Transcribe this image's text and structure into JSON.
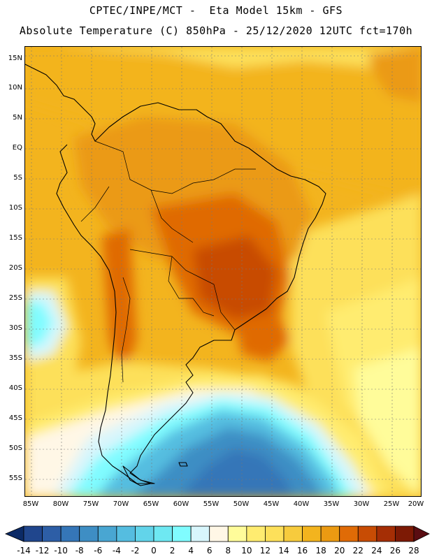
{
  "header": {
    "title_line1": "CPTEC/INPE/MCT -  Eta Model 15km - GFS",
    "title_line2": "Absolute Temperature (C) 850hPa - 25/12/2020 12UTC fct=170h"
  },
  "map": {
    "lat_labels": [
      "15N",
      "10N",
      "5N",
      "EQ",
      "5S",
      "10S",
      "15S",
      "20S",
      "25S",
      "30S",
      "35S",
      "40S",
      "45S",
      "50S",
      "55S"
    ],
    "lon_labels": [
      "85W",
      "80W",
      "75W",
      "70W",
      "65W",
      "60W",
      "55W",
      "50W",
      "45W",
      "40W",
      "35W",
      "30W",
      "25W",
      "20W"
    ],
    "lat_range_deg": [
      -58,
      17
    ],
    "lon_range_deg": [
      -86,
      -19.5
    ]
  },
  "colorbar": {
    "labels": [
      "-14",
      "-12",
      "-10",
      "-8",
      "-6",
      "-4",
      "-2",
      "0",
      "2",
      "4",
      "6",
      "8",
      "10",
      "12",
      "14",
      "16",
      "18",
      "20",
      "22",
      "24",
      "26",
      "28"
    ],
    "colors": [
      "#0b2a66",
      "#20468d",
      "#2d5ea6",
      "#3576b8",
      "#3e8ec4",
      "#49a6d2",
      "#55bde0",
      "#62d4ea",
      "#6ee8f2",
      "#80fcff",
      "#d8f6fc",
      "#fff7e6",
      "#fffc9a",
      "#ffec70",
      "#fde05a",
      "#f7cb3d",
      "#f3b41e",
      "#eb9a12",
      "#e06b06",
      "#c84c04",
      "#a52e05",
      "#7d1a05",
      "#5a0d12"
    ]
  }
}
